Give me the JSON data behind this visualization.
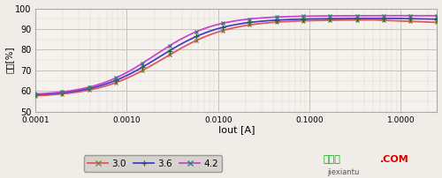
{
  "xlabel": "Iout [A]",
  "ylabel": "效率[%]",
  "xlim": [
    0.0001,
    2.5
  ],
  "ylim": [
    50,
    100
  ],
  "yticks": [
    50,
    60,
    70,
    80,
    90,
    100
  ],
  "bg_color": "#f0ece8",
  "plot_bg": "#f5f2ee",
  "grid_major_color": "#c8c0b8",
  "grid_minor_color": "#ddd8d0",
  "series": [
    {
      "label": "3.0",
      "color": "#e05858",
      "marker": "x",
      "marker_color": "#808040"
    },
    {
      "label": "3.6",
      "color": "#4040cc",
      "marker": "+",
      "marker_color": "#306030"
    },
    {
      "label": "4.2",
      "color": "#cc44cc",
      "marker": "x",
      "marker_color": "#308080"
    }
  ],
  "xtick_locs": [
    0.0001,
    0.001,
    0.01,
    0.1,
    1.0
  ],
  "xtick_labels": [
    "0.0001",
    "0.0010",
    "0.0100",
    "0.1000",
    "1.0000"
  ],
  "legend_facecolor": "#d0ccc8",
  "legend_edgecolor": "#888880",
  "wm_green": "#00aa00",
  "wm_red": "#dd0000",
  "wm_gray": "#555555"
}
